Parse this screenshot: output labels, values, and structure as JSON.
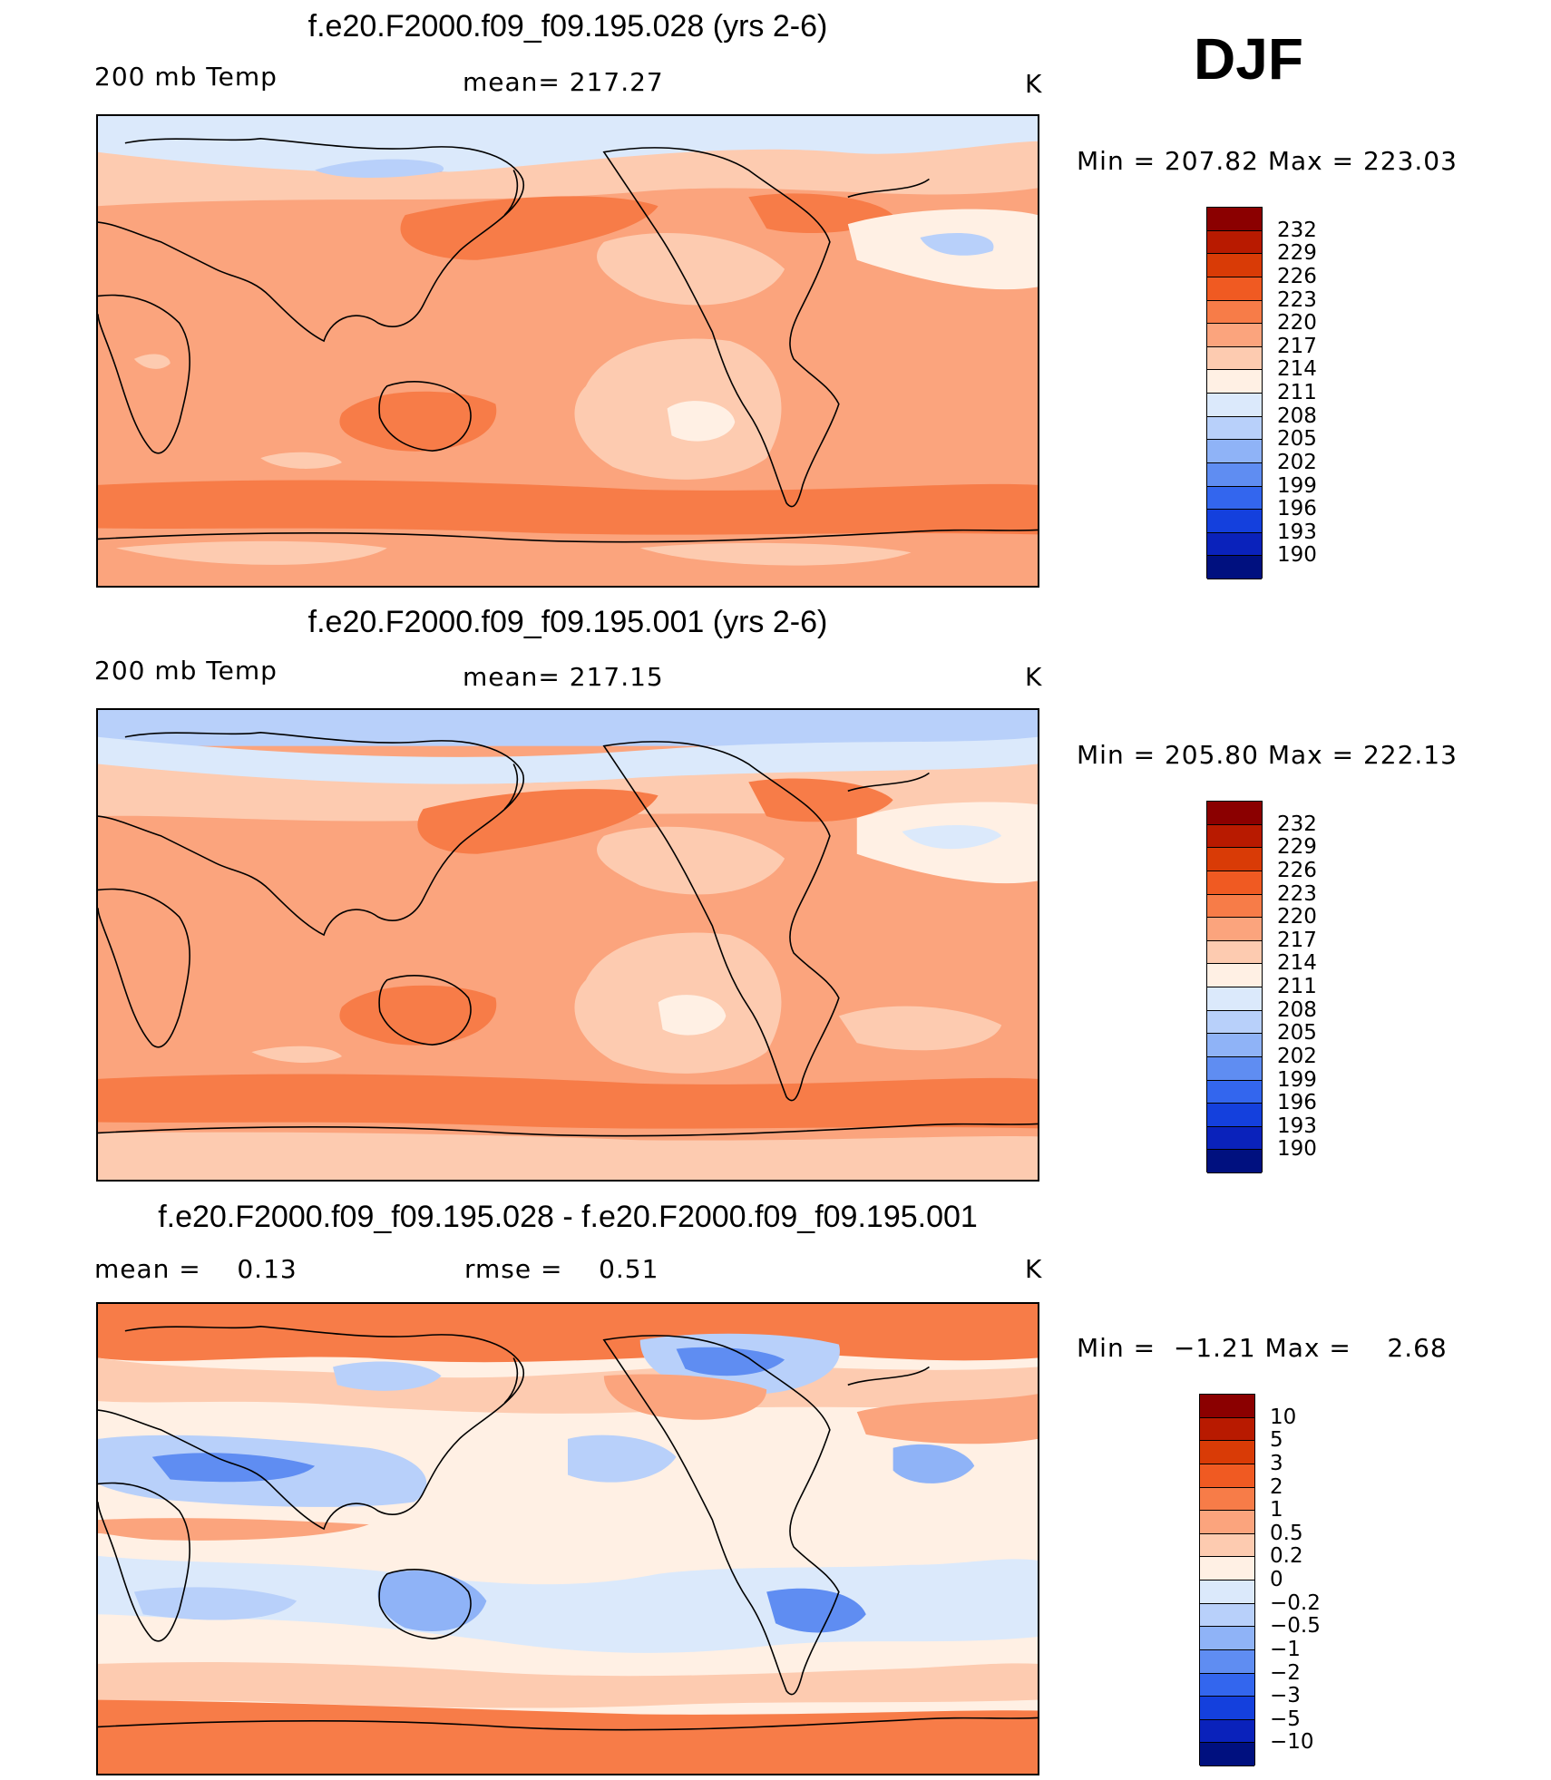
{
  "season": "DJF",
  "panels": [
    {
      "title": "f.e20.F2000.f09_f09.195.028 (yrs 2-6)",
      "left_label": "200 mb Temp",
      "center_label": "mean= 217.27",
      "units": "K",
      "min_max": "Min = 207.82 Max = 223.03",
      "colorbar": {
        "labels": [
          "232",
          "229",
          "226",
          "223",
          "220",
          "217",
          "214",
          "211",
          "208",
          "205",
          "202",
          "199",
          "196",
          "193",
          "190"
        ],
        "colors": [
          "#8b0000",
          "#b81a00",
          "#d93b06",
          "#f05a22",
          "#f77c48",
          "#fba47d",
          "#fdcbb0",
          "#fff0e4",
          "#dbe9fb",
          "#b8d0fa",
          "#8fb3f7",
          "#5f8df2",
          "#3366ee",
          "#1440dd",
          "#0a22bb",
          "#00107f"
        ]
      }
    },
    {
      "title": "f.e20.F2000.f09_f09.195.001 (yrs 2-6)",
      "left_label": "200 mb Temp",
      "center_label": "mean= 217.15",
      "units": "K",
      "min_max": "Min = 205.80 Max = 222.13",
      "colorbar": {
        "labels": [
          "232",
          "229",
          "226",
          "223",
          "220",
          "217",
          "214",
          "211",
          "208",
          "205",
          "202",
          "199",
          "196",
          "193",
          "190"
        ],
        "colors": [
          "#8b0000",
          "#b81a00",
          "#d93b06",
          "#f05a22",
          "#f77c48",
          "#fba47d",
          "#fdcbb0",
          "#fff0e4",
          "#dbe9fb",
          "#b8d0fa",
          "#8fb3f7",
          "#5f8df2",
          "#3366ee",
          "#1440dd",
          "#0a22bb",
          "#00107f"
        ]
      }
    },
    {
      "title": "f.e20.F2000.f09_f09.195.028 - f.e20.F2000.f09_f09.195.001",
      "left_label": "mean =    0.13",
      "center_label": "rmse =    0.51",
      "units": "K",
      "min_max": "Min =  −1.21 Max =    2.68",
      "colorbar": {
        "labels": [
          "10",
          "5",
          "3",
          "2",
          "1",
          "0.5",
          "0.2",
          "0",
          "−0.2",
          "−0.5",
          "−1",
          "−2",
          "−3",
          "−5",
          "−10"
        ],
        "colors": [
          "#8b0000",
          "#b81a00",
          "#d93b06",
          "#f05a22",
          "#f77c48",
          "#fba47d",
          "#fdcbb0",
          "#fff0e4",
          "#dbe9fb",
          "#b8d0fa",
          "#8fb3f7",
          "#5f8df2",
          "#3366ee",
          "#1440dd",
          "#0a22bb",
          "#00107f"
        ]
      }
    }
  ]
}
